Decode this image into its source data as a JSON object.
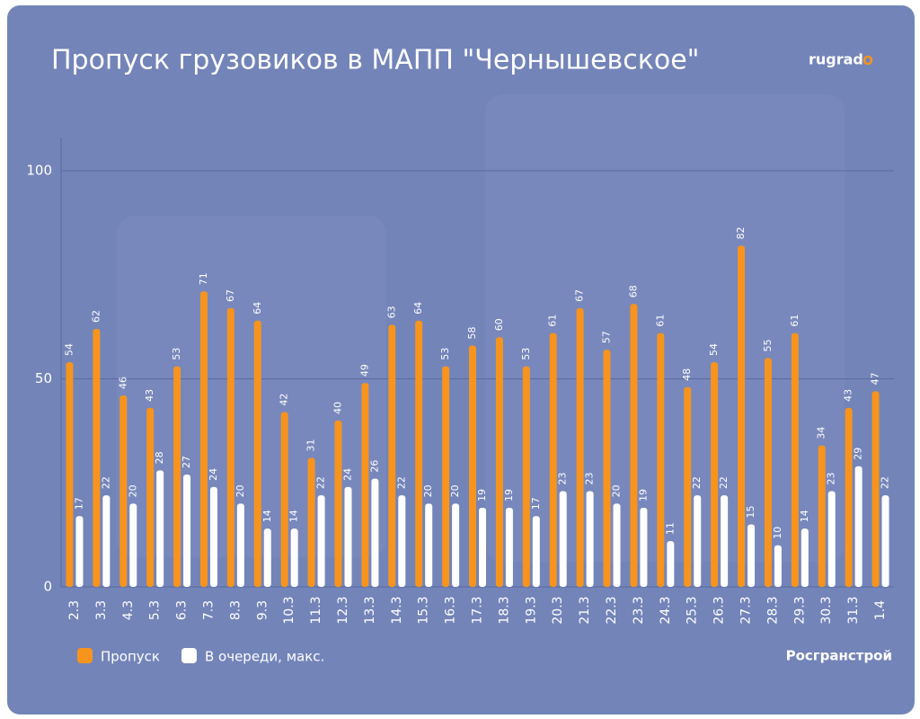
{
  "chart_data": {
    "type": "bar",
    "title": "Пропуск грузовиков в МАПП \"Чернышевское\"",
    "logo": "rugrad",
    "source": "Росгранстрой",
    "categories": [
      "2.3",
      "3.3",
      "4.3",
      "5.3",
      "6.3",
      "7.3",
      "8.3",
      "9.3",
      "10.3",
      "11.3",
      "12.3",
      "13.3",
      "14.3",
      "15.3",
      "16.3",
      "17.3",
      "18.3",
      "19.3",
      "20.3",
      "21.3",
      "22.3",
      "23.3",
      "24.3",
      "25.3",
      "26.3",
      "27.3",
      "28.3",
      "29.3",
      "30.3",
      "31.3",
      "1.4"
    ],
    "series": [
      {
        "name": "Пропуск",
        "color": "#f7941d",
        "values": [
          54,
          62,
          46,
          43,
          53,
          71,
          67,
          64,
          42,
          31,
          40,
          49,
          63,
          64,
          53,
          58,
          60,
          53,
          61,
          67,
          57,
          68,
          61,
          48,
          54,
          82,
          55,
          61,
          34,
          43,
          47
        ]
      },
      {
        "name": "В очереди, макс.",
        "color": "#ffffff",
        "values": [
          17,
          22,
          20,
          28,
          27,
          24,
          20,
          14,
          14,
          22,
          24,
          26,
          22,
          20,
          20,
          19,
          19,
          17,
          23,
          23,
          20,
          19,
          11,
          22,
          22,
          15,
          10,
          14,
          23,
          29,
          22
        ]
      }
    ],
    "ylim": [
      0,
      108
    ],
    "yticks": [
      0,
      50,
      100
    ],
    "grid": true
  }
}
